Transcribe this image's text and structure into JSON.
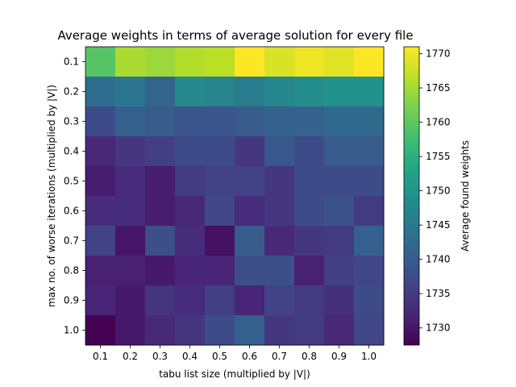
{
  "chart_data": {
    "type": "heatmap",
    "title": "Average weights in terms of average solution for every file",
    "xlabel": "tabu list size (multiplied by |V|)",
    "ylabel": "max no. of worse iterations (multiplied by |V|)",
    "x_categories": [
      "0.1",
      "0.2",
      "0.3",
      "0.4",
      "0.5",
      "0.6",
      "0.7",
      "0.8",
      "0.9",
      "1.0"
    ],
    "y_categories": [
      "0.1",
      "0.2",
      "0.3",
      "0.4",
      "0.5",
      "0.6",
      "0.7",
      "0.8",
      "0.9",
      "1.0"
    ],
    "values": [
      [
        1759.5,
        1765.5,
        1764.5,
        1766.0,
        1766.5,
        1771.0,
        1768.5,
        1770.0,
        1769.0,
        1771.0
      ],
      [
        1743.0,
        1744.5,
        1741.5,
        1748.0,
        1747.0,
        1745.5,
        1747.5,
        1748.5,
        1749.5,
        1749.5
      ],
      [
        1737.5,
        1740.5,
        1740.0,
        1739.0,
        1739.0,
        1740.0,
        1741.0,
        1741.0,
        1742.5,
        1742.5
      ],
      [
        1732.5,
        1734.5,
        1735.5,
        1737.5,
        1737.5,
        1734.5,
        1739.5,
        1737.5,
        1740.0,
        1740.0
      ],
      [
        1731.0,
        1733.0,
        1731.0,
        1735.0,
        1736.0,
        1736.0,
        1734.5,
        1737.5,
        1737.5,
        1737.5
      ],
      [
        1733.0,
        1733.0,
        1731.0,
        1732.5,
        1736.5,
        1733.0,
        1734.5,
        1737.5,
        1738.5,
        1735.0
      ],
      [
        1736.0,
        1730.0,
        1738.0,
        1733.0,
        1729.5,
        1740.0,
        1732.5,
        1734.5,
        1735.0,
        1740.5
      ],
      [
        1731.5,
        1731.5,
        1730.5,
        1732.0,
        1732.0,
        1738.0,
        1738.0,
        1731.5,
        1735.5,
        1736.5
      ],
      [
        1732.0,
        1730.5,
        1734.0,
        1733.0,
        1735.5,
        1732.0,
        1736.0,
        1735.0,
        1733.5,
        1737.5
      ],
      [
        1727.5,
        1730.5,
        1732.5,
        1734.5,
        1737.5,
        1740.5,
        1734.5,
        1735.0,
        1732.5,
        1736.5
      ]
    ],
    "colormap": "viridis",
    "vmin": 1727.5,
    "vmax": 1771.0,
    "colorbar": {
      "label": "Average found weights",
      "ticks": [
        1730,
        1735,
        1740,
        1745,
        1750,
        1755,
        1760,
        1765,
        1770
      ]
    },
    "grid": false
  }
}
